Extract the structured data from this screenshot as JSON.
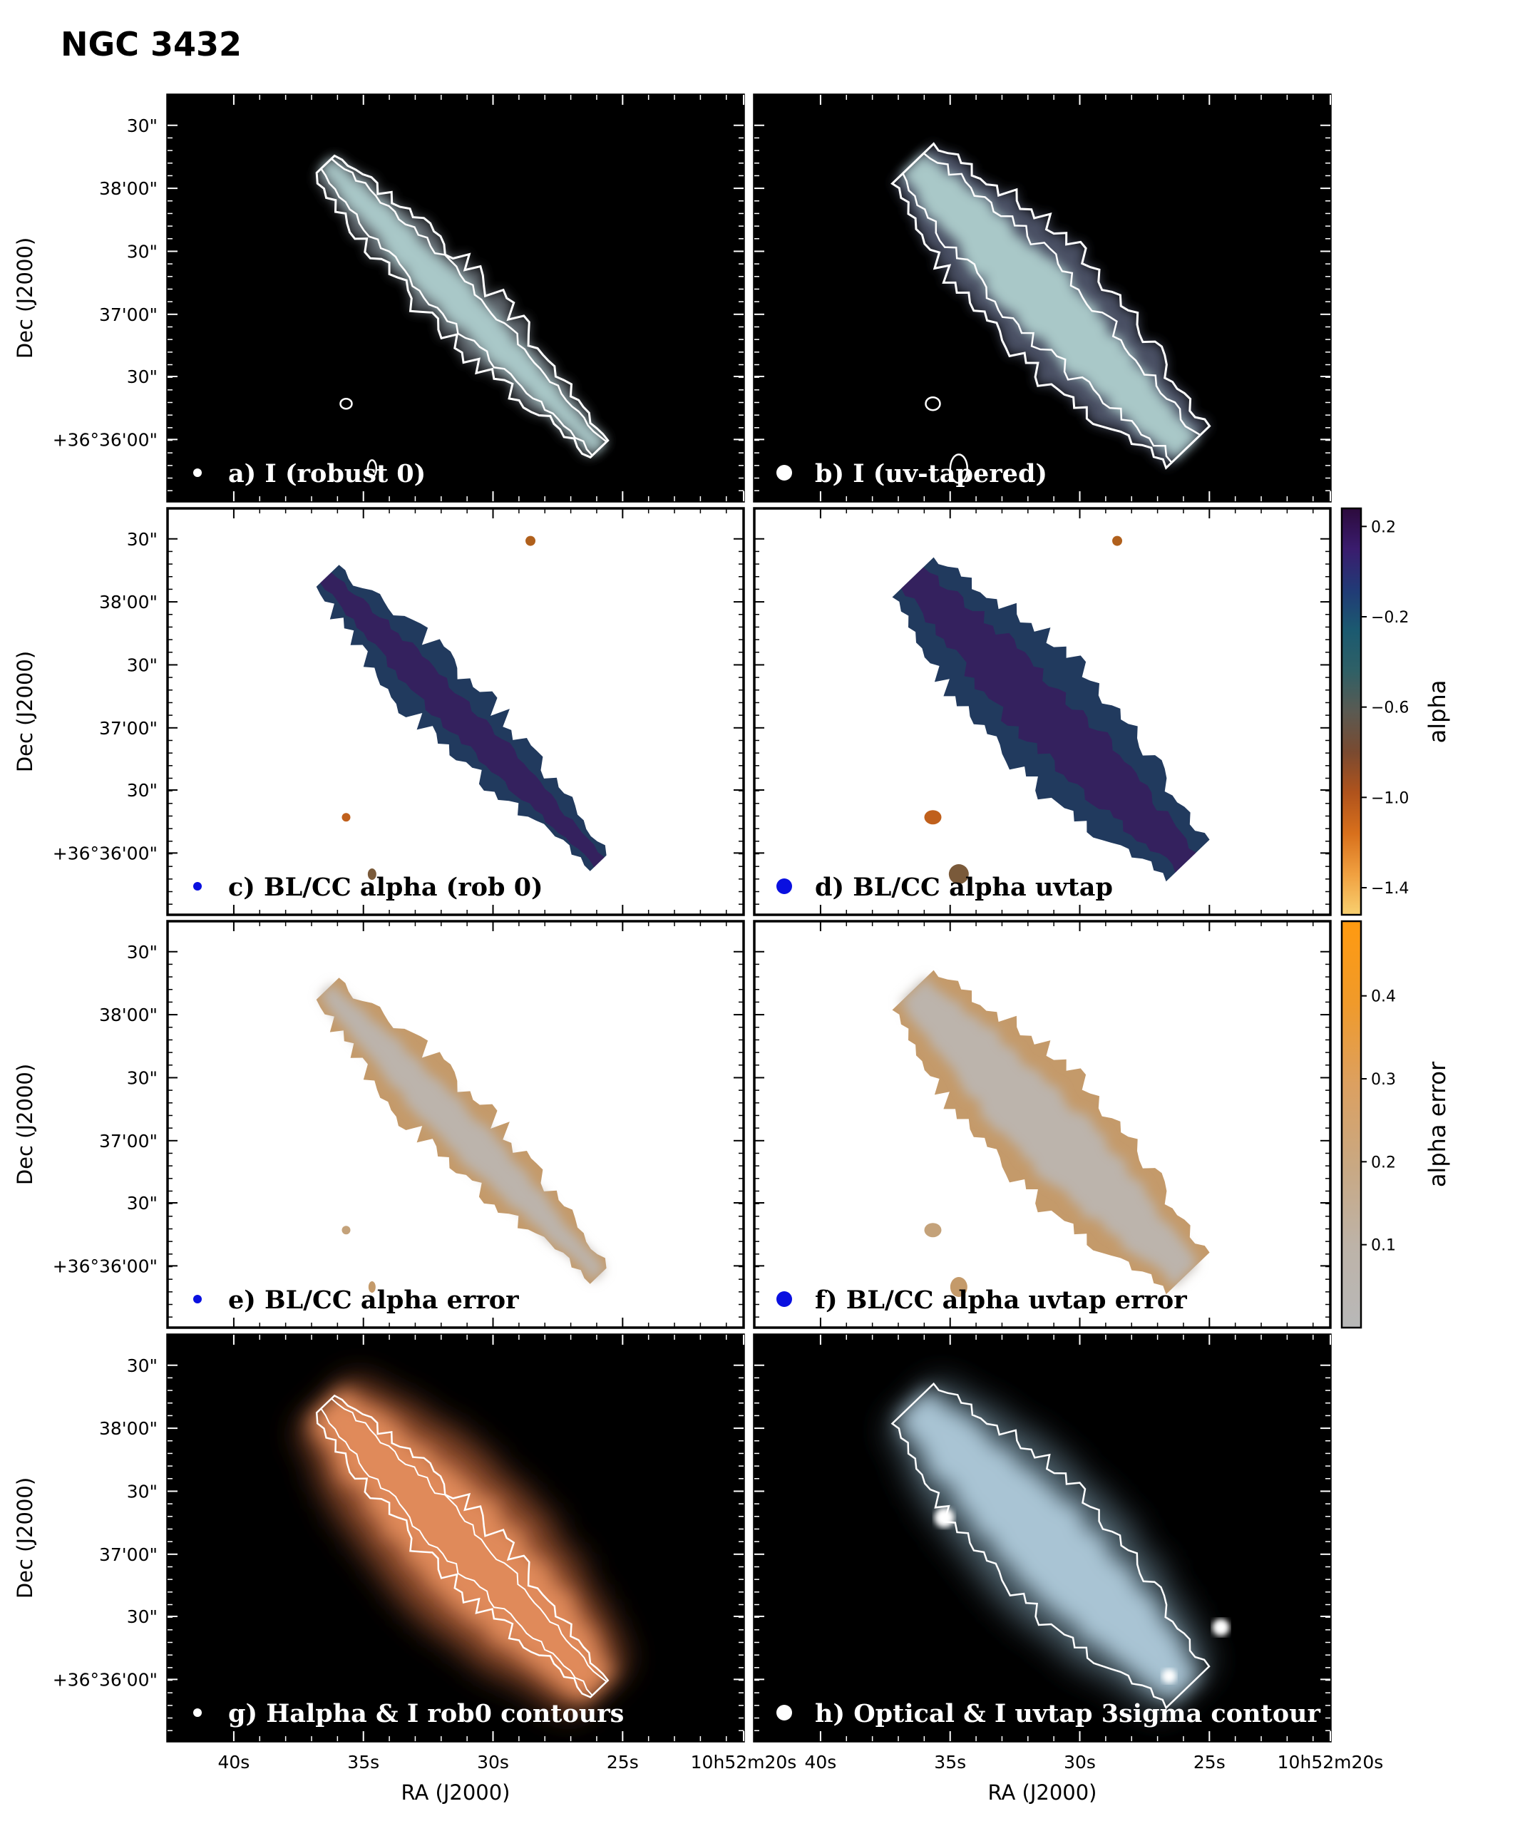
{
  "figure_title": "NGC 3432",
  "colors": {
    "panel_dark_bg": "#000000",
    "panel_light_bg": "#ffffff",
    "contour": "#ffffff",
    "beam_radio": "#ffffff",
    "beam_alpha": "#0a10e0",
    "halpha": "#e08a5a",
    "optical": "#a9c4d4"
  },
  "axes": {
    "ra_label": "RA (J2000)",
    "dec_label": "Dec (J2000)",
    "ra_ticks": [
      "40s",
      "35s",
      "30s",
      "25s",
      "10h52m20s"
    ],
    "dec_ticks": [
      "30\"",
      "38'00\"",
      "30\"",
      "37'00\"",
      "30\"",
      "+36°36'00\""
    ]
  },
  "panels": [
    {
      "id": "a",
      "label": "a) I (robust 0)",
      "style": "radio",
      "beam": "small",
      "beam_color": "white",
      "label_color": "#ffffff"
    },
    {
      "id": "b",
      "label": "b) I (uv-tapered)",
      "style": "radio_taper",
      "beam": "large",
      "beam_color": "white",
      "label_color": "#ffffff"
    },
    {
      "id": "c",
      "label": "c) BL/CC alpha (rob 0)",
      "style": "alpha",
      "beam": "small",
      "beam_color": "blue",
      "label_color": "#000000"
    },
    {
      "id": "d",
      "label": "d) BL/CC alpha uvtap",
      "style": "alpha_taper",
      "beam": "large",
      "beam_color": "blue",
      "label_color": "#000000"
    },
    {
      "id": "e",
      "label": "e)  BL/CC alpha error",
      "style": "err",
      "beam": "small",
      "beam_color": "blue",
      "label_color": "#000000"
    },
    {
      "id": "f",
      "label": "f) BL/CC alpha uvtap error",
      "style": "err_taper",
      "beam": "large",
      "beam_color": "blue",
      "label_color": "#000000"
    },
    {
      "id": "g",
      "label": "g) Halpha & I rob0 contours",
      "style": "halpha",
      "beam": "small",
      "beam_color": "white",
      "label_color": "#ffffff"
    },
    {
      "id": "h",
      "label": "h) Optical & I uvtap 3sigma contour",
      "style": "optical",
      "beam": "large",
      "beam_color": "white",
      "label_color": "#ffffff"
    }
  ],
  "colorbars": [
    {
      "label": "alpha",
      "ticks": [
        0.2,
        -0.2,
        -0.6,
        -1.0,
        -1.4
      ],
      "tick_labels": [
        "0.2",
        "−0.2",
        "−0.6",
        "−1.0",
        "−1.4"
      ],
      "range": [
        0.28,
        -1.52
      ],
      "stops": [
        "#2c0a3c",
        "#3a1c6e",
        "#213a76",
        "#1b5a70",
        "#2f6066",
        "#5a5a52",
        "#7a4a30",
        "#b0531c",
        "#d8701c",
        "#f0a040",
        "#f8d070"
      ]
    },
    {
      "label": "alpha error",
      "ticks": [
        0.4,
        0.3,
        0.2,
        0.1
      ],
      "tick_labels": [
        "0.4",
        "0.3",
        "0.2",
        "0.1"
      ],
      "range": [
        0.49,
        0.0
      ],
      "stops": [
        "#ff9a10",
        "#f09a2a",
        "#dca060",
        "#c9a882",
        "#bdb3a8",
        "#b8b8b8"
      ]
    }
  ]
}
